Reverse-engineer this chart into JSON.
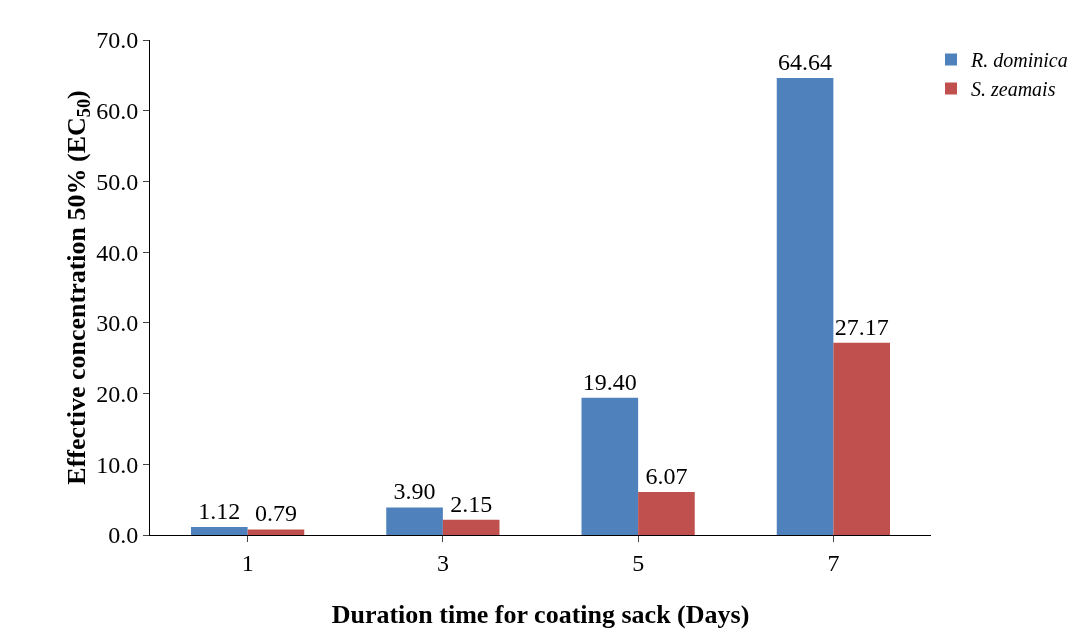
{
  "chart_data": {
    "type": "bar",
    "xlabel": "Duration time for coating sack (Days)",
    "ylabel": "Effective concentration 50% (EC$_{50}$)",
    "categories": [
      "1",
      "3",
      "5",
      "7"
    ],
    "series": [
      {
        "name": "R. dominica",
        "color": "#4f81bd",
        "values": [
          1.12,
          3.9,
          19.4,
          64.64
        ],
        "value_labels": [
          "1.12",
          "3.90",
          "19.40",
          "64.64"
        ]
      },
      {
        "name": "S. zeamais",
        "color": "#c0504d",
        "values": [
          0.79,
          2.15,
          6.07,
          27.17
        ],
        "value_labels": [
          "0.79",
          "2.15",
          "6.07",
          "27.17"
        ]
      }
    ],
    "ylim": [
      0,
      70
    ],
    "yticks": [
      {
        "value": 0,
        "label": "0.0"
      },
      {
        "value": 10,
        "label": "10.0"
      },
      {
        "value": 20,
        "label": "20.0"
      },
      {
        "value": 30,
        "label": "30.0"
      },
      {
        "value": 40,
        "label": "40.0"
      },
      {
        "value": 50,
        "label": "50.0"
      },
      {
        "value": 60,
        "label": "60.0"
      },
      {
        "value": 70,
        "label": "70.0"
      }
    ],
    "grid": false,
    "legend": "top right"
  }
}
